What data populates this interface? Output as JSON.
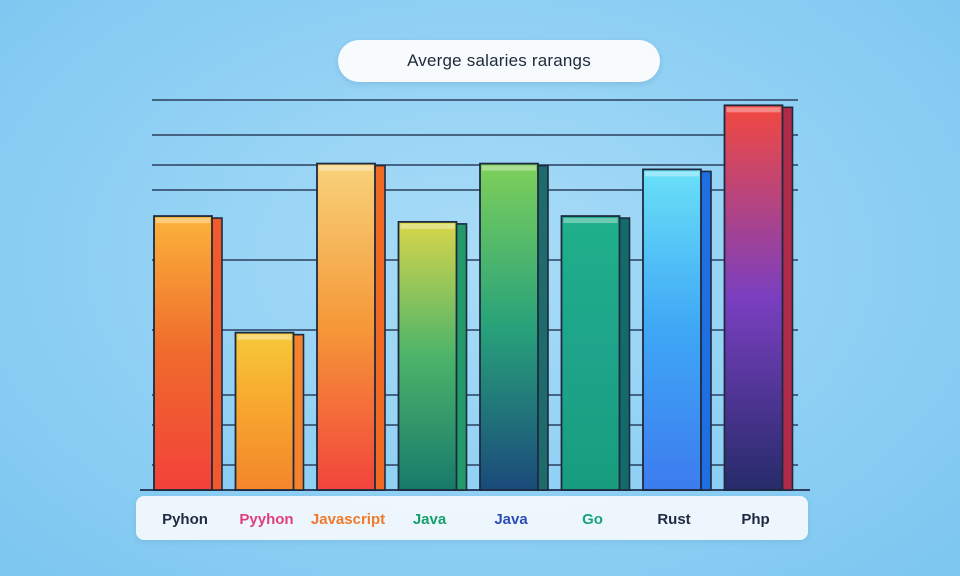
{
  "chart_data": {
    "type": "bar",
    "title": "Averge salaries rarangs",
    "categories": [
      "Pyhon",
      "Pyyhon",
      "Javascript",
      "Java",
      "Java",
      "Go",
      "Rust",
      "Php"
    ],
    "values": [
      77,
      57,
      86,
      76,
      86,
      77,
      85,
      96
    ],
    "ylim": [
      30,
      100
    ],
    "grid": true,
    "colors": {
      "label_colors": [
        "#1f2a44",
        "#e0407a",
        "#ee7a2a",
        "#17a06a",
        "#2a4db8",
        "#19a37a",
        "#1f2a44",
        "#1f2a44"
      ],
      "bar_gradients": [
        [
          "#fbb33a",
          "#f06a2c",
          "#f2413a"
        ],
        [
          "#f7c93a",
          "#f7a52e",
          "#f3862c"
        ],
        [
          "#f8d27a",
          "#f59838",
          "#f2443c"
        ],
        [
          "#d8d64a",
          "#4cb46a",
          "#177a6a"
        ],
        [
          "#7ed05a",
          "#28a27a",
          "#1a4a7a"
        ],
        [
          "#1fb08a",
          "#1ea48a",
          "#179d7d"
        ],
        [
          "#6ae0f7",
          "#3ea7f5",
          "#3d7cef"
        ],
        [
          "#f2493f",
          "#7a3fc0",
          "#262b6a"
        ]
      ],
      "bar_sides": [
        "#f05a2c",
        "#f5822c",
        "#f06a24",
        "#229a6a",
        "#1f6a6a",
        "#136a6a",
        "#1f6fe0",
        "#b02a4a"
      ]
    }
  }
}
